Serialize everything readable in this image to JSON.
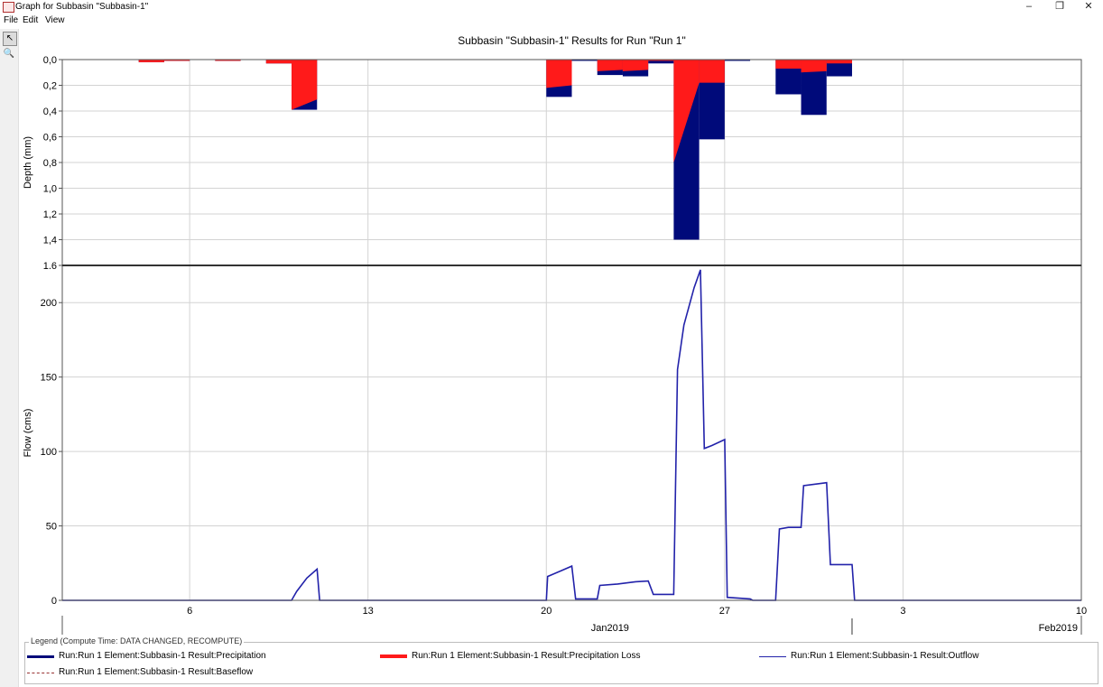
{
  "window": {
    "title": "Graph for Subbasin \"Subbasin-1\"",
    "controls": {
      "minimize": "–",
      "restore": "❐",
      "close": "✕"
    }
  },
  "menu": [
    "File",
    "Edit",
    "View"
  ],
  "tools": [
    {
      "name": "pointer-tool",
      "glyph": "↖",
      "active": true
    },
    {
      "name": "zoom-tool",
      "glyph": "🔍",
      "active": false
    }
  ],
  "chart": {
    "title": "Subbasin \"Subbasin-1\" Results for Run \"Run 1\"",
    "top_ylabel": "Depth (mm)",
    "bottom_ylabel": "Flow (cms)",
    "depth_ticks": [
      "0,0",
      "0,2",
      "0,4",
      "0,6",
      "0,8",
      "1,0",
      "1,2",
      "1,4",
      "1.6"
    ],
    "flow_ticks": [
      "0",
      "50",
      "100",
      "150",
      "200"
    ],
    "x_ticks": [
      "6",
      "13",
      "20",
      "27",
      "3",
      "10"
    ],
    "month_labels": [
      "Jan2019",
      "Feb2019"
    ]
  },
  "chart_data": [
    {
      "type": "bar",
      "title": "Subbasin \"Subbasin-1\" Results for Run \"Run 1\"",
      "ylabel": "Depth (mm)",
      "ylim": [
        1.6,
        0
      ],
      "y_inverted": true,
      "x_unit": "days since 2019-01-01",
      "series": [
        {
          "name": "Run:Run 1 Element:Subbasin-1 Result:Precipitation",
          "color": "#000a7a",
          "bars": [
            {
              "x0": 4,
              "x1": 5,
              "v": 0.02
            },
            {
              "x0": 5,
              "x1": 6,
              "v": 0.01
            },
            {
              "x0": 7,
              "x1": 8,
              "v": 0.01
            },
            {
              "x0": 9,
              "x1": 10,
              "v": 0.03
            },
            {
              "x0": 10,
              "x1": 11,
              "v": 0.39
            },
            {
              "x0": 20,
              "x1": 21,
              "v": 0.29
            },
            {
              "x0": 21,
              "x1": 22,
              "v": 0.01
            },
            {
              "x0": 22,
              "x1": 23,
              "v": 0.12
            },
            {
              "x0": 23,
              "x1": 24,
              "v": 0.13
            },
            {
              "x0": 24,
              "x1": 25,
              "v": 0.03
            },
            {
              "x0": 25,
              "x1": 26,
              "v": 1.4
            },
            {
              "x0": 26,
              "x1": 27,
              "v": 0.62
            },
            {
              "x0": 27,
              "x1": 28,
              "v": 0.01
            },
            {
              "x0": 29,
              "x1": 30,
              "v": 0.27
            },
            {
              "x0": 30,
              "x1": 31,
              "v": 0.43
            },
            {
              "x0": 31,
              "x1": 32,
              "v": 0.13
            }
          ]
        },
        {
          "name": "Run:Run 1 Element:Subbasin-1 Result:Precipitation Loss",
          "color": "#ff1a1a",
          "bars": [
            {
              "x0": 4,
              "x1": 5,
              "v0": 0.02,
              "v1": 0.02
            },
            {
              "x0": 5,
              "x1": 6,
              "v0": 0.01,
              "v1": 0.01
            },
            {
              "x0": 7,
              "x1": 8,
              "v0": 0.01,
              "v1": 0.01
            },
            {
              "x0": 9,
              "x1": 10,
              "v0": 0.03,
              "v1": 0.03
            },
            {
              "x0": 10,
              "x1": 11,
              "v0": 0.39,
              "v1": 0.31
            },
            {
              "x0": 20,
              "x1": 21,
              "v0": 0.22,
              "v1": 0.2
            },
            {
              "x0": 22,
              "x1": 23,
              "v0": 0.09,
              "v1": 0.08
            },
            {
              "x0": 23,
              "x1": 24,
              "v0": 0.09,
              "v1": 0.08
            },
            {
              "x0": 24,
              "x1": 25,
              "v0": 0.01,
              "v1": 0.01
            },
            {
              "x0": 25,
              "x1": 26,
              "v0": 0.8,
              "v1": 0.18
            },
            {
              "x0": 26,
              "x1": 27,
              "v0": 0.18,
              "v1": 0.18
            },
            {
              "x0": 29,
              "x1": 30,
              "v0": 0.07,
              "v1": 0.07
            },
            {
              "x0": 30,
              "x1": 31,
              "v0": 0.1,
              "v1": 0.09
            },
            {
              "x0": 31,
              "x1": 32,
              "v0": 0.03,
              "v1": 0.03
            }
          ]
        }
      ]
    },
    {
      "type": "line",
      "ylabel": "Flow (cms)",
      "ylim": [
        0,
        225
      ],
      "xlim": [
        1,
        41
      ],
      "x_unit": "days since 2019-01-01",
      "series": [
        {
          "name": "Run:Run 1 Element:Subbasin-1 Result:Outflow",
          "color": "#2222aa",
          "points": [
            [
              1,
              0
            ],
            [
              10,
              0
            ],
            [
              10.2,
              6
            ],
            [
              10.6,
              15
            ],
            [
              11,
              21
            ],
            [
              11.1,
              0
            ],
            [
              20,
              0
            ],
            [
              20.05,
              16
            ],
            [
              20.6,
              20
            ],
            [
              21,
              23
            ],
            [
              21.15,
              1
            ],
            [
              22,
              1
            ],
            [
              22.1,
              10
            ],
            [
              22.8,
              11
            ],
            [
              23.5,
              12.5
            ],
            [
              24,
              13
            ],
            [
              24.2,
              4
            ],
            [
              25,
              4
            ],
            [
              25.15,
              155
            ],
            [
              25.4,
              185
            ],
            [
              25.8,
              210
            ],
            [
              26.05,
              222
            ],
            [
              26.2,
              102
            ],
            [
              26.5,
              104
            ],
            [
              27,
              108
            ],
            [
              27.1,
              2
            ],
            [
              28,
              1
            ],
            [
              28.1,
              0
            ],
            [
              29,
              0
            ],
            [
              29.15,
              48
            ],
            [
              29.5,
              49
            ],
            [
              30,
              49
            ],
            [
              30.1,
              77
            ],
            [
              31,
              79
            ],
            [
              31.15,
              24
            ],
            [
              32,
              24
            ],
            [
              32.1,
              0
            ],
            [
              41,
              0
            ]
          ]
        },
        {
          "name": "Run:Run 1 Element:Subbasin-1 Result:Baseflow",
          "color": "#993333",
          "dashed": true,
          "points": [
            [
              1,
              0
            ],
            [
              41,
              0
            ]
          ]
        }
      ]
    }
  ],
  "legend": {
    "title": "Legend (Compute Time: DATA CHANGED, RECOMPUTE)",
    "items": [
      {
        "label": "Run:Run 1 Element:Subbasin-1 Result:Precipitation",
        "color": "#000a7a",
        "style": "thick"
      },
      {
        "label": "Run:Run 1 Element:Subbasin-1 Result:Precipitation Loss",
        "color": "#ff1a1a",
        "style": "thick"
      },
      {
        "label": "Run:Run 1 Element:Subbasin-1 Result:Outflow",
        "color": "#2222aa",
        "style": "thin"
      },
      {
        "label": "Run:Run 1 Element:Subbasin-1 Result:Baseflow",
        "color": "#993333",
        "style": "dashed"
      }
    ]
  }
}
